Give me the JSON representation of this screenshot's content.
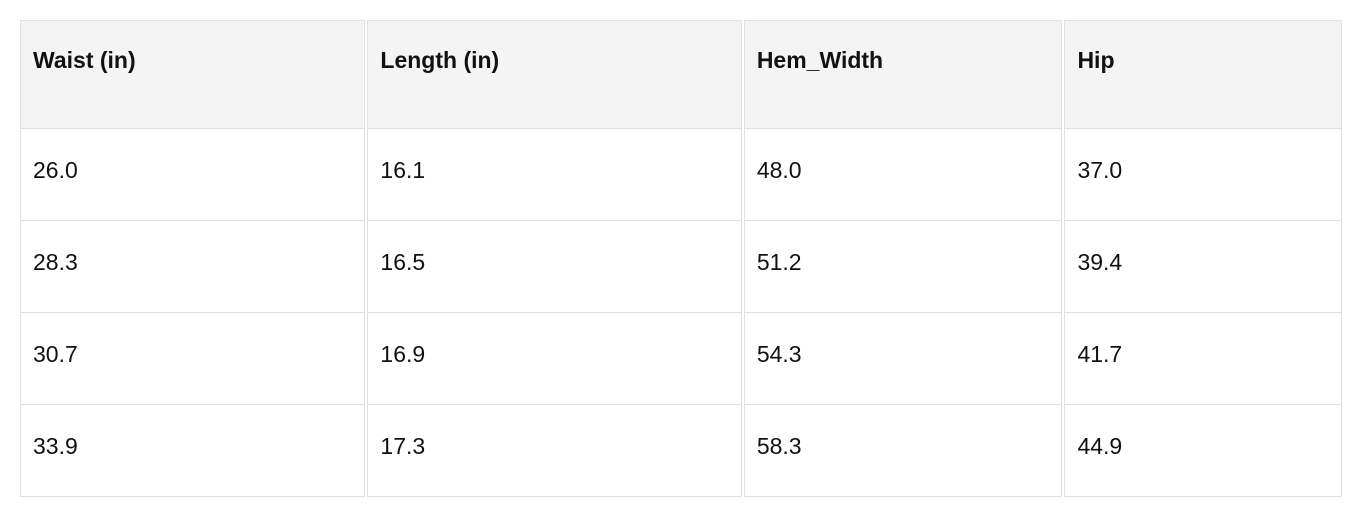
{
  "table": {
    "headers": [
      "Waist (in)",
      "Length (in)",
      "Hem_Width",
      "Hip"
    ],
    "rows": [
      [
        "26.0",
        "16.1",
        "48.0",
        "37.0"
      ],
      [
        "28.3",
        "16.5",
        "51.2",
        "39.4"
      ],
      [
        "30.7",
        "16.9",
        "54.3",
        "41.7"
      ],
      [
        "33.9",
        "17.3",
        "58.3",
        "44.9"
      ]
    ]
  }
}
